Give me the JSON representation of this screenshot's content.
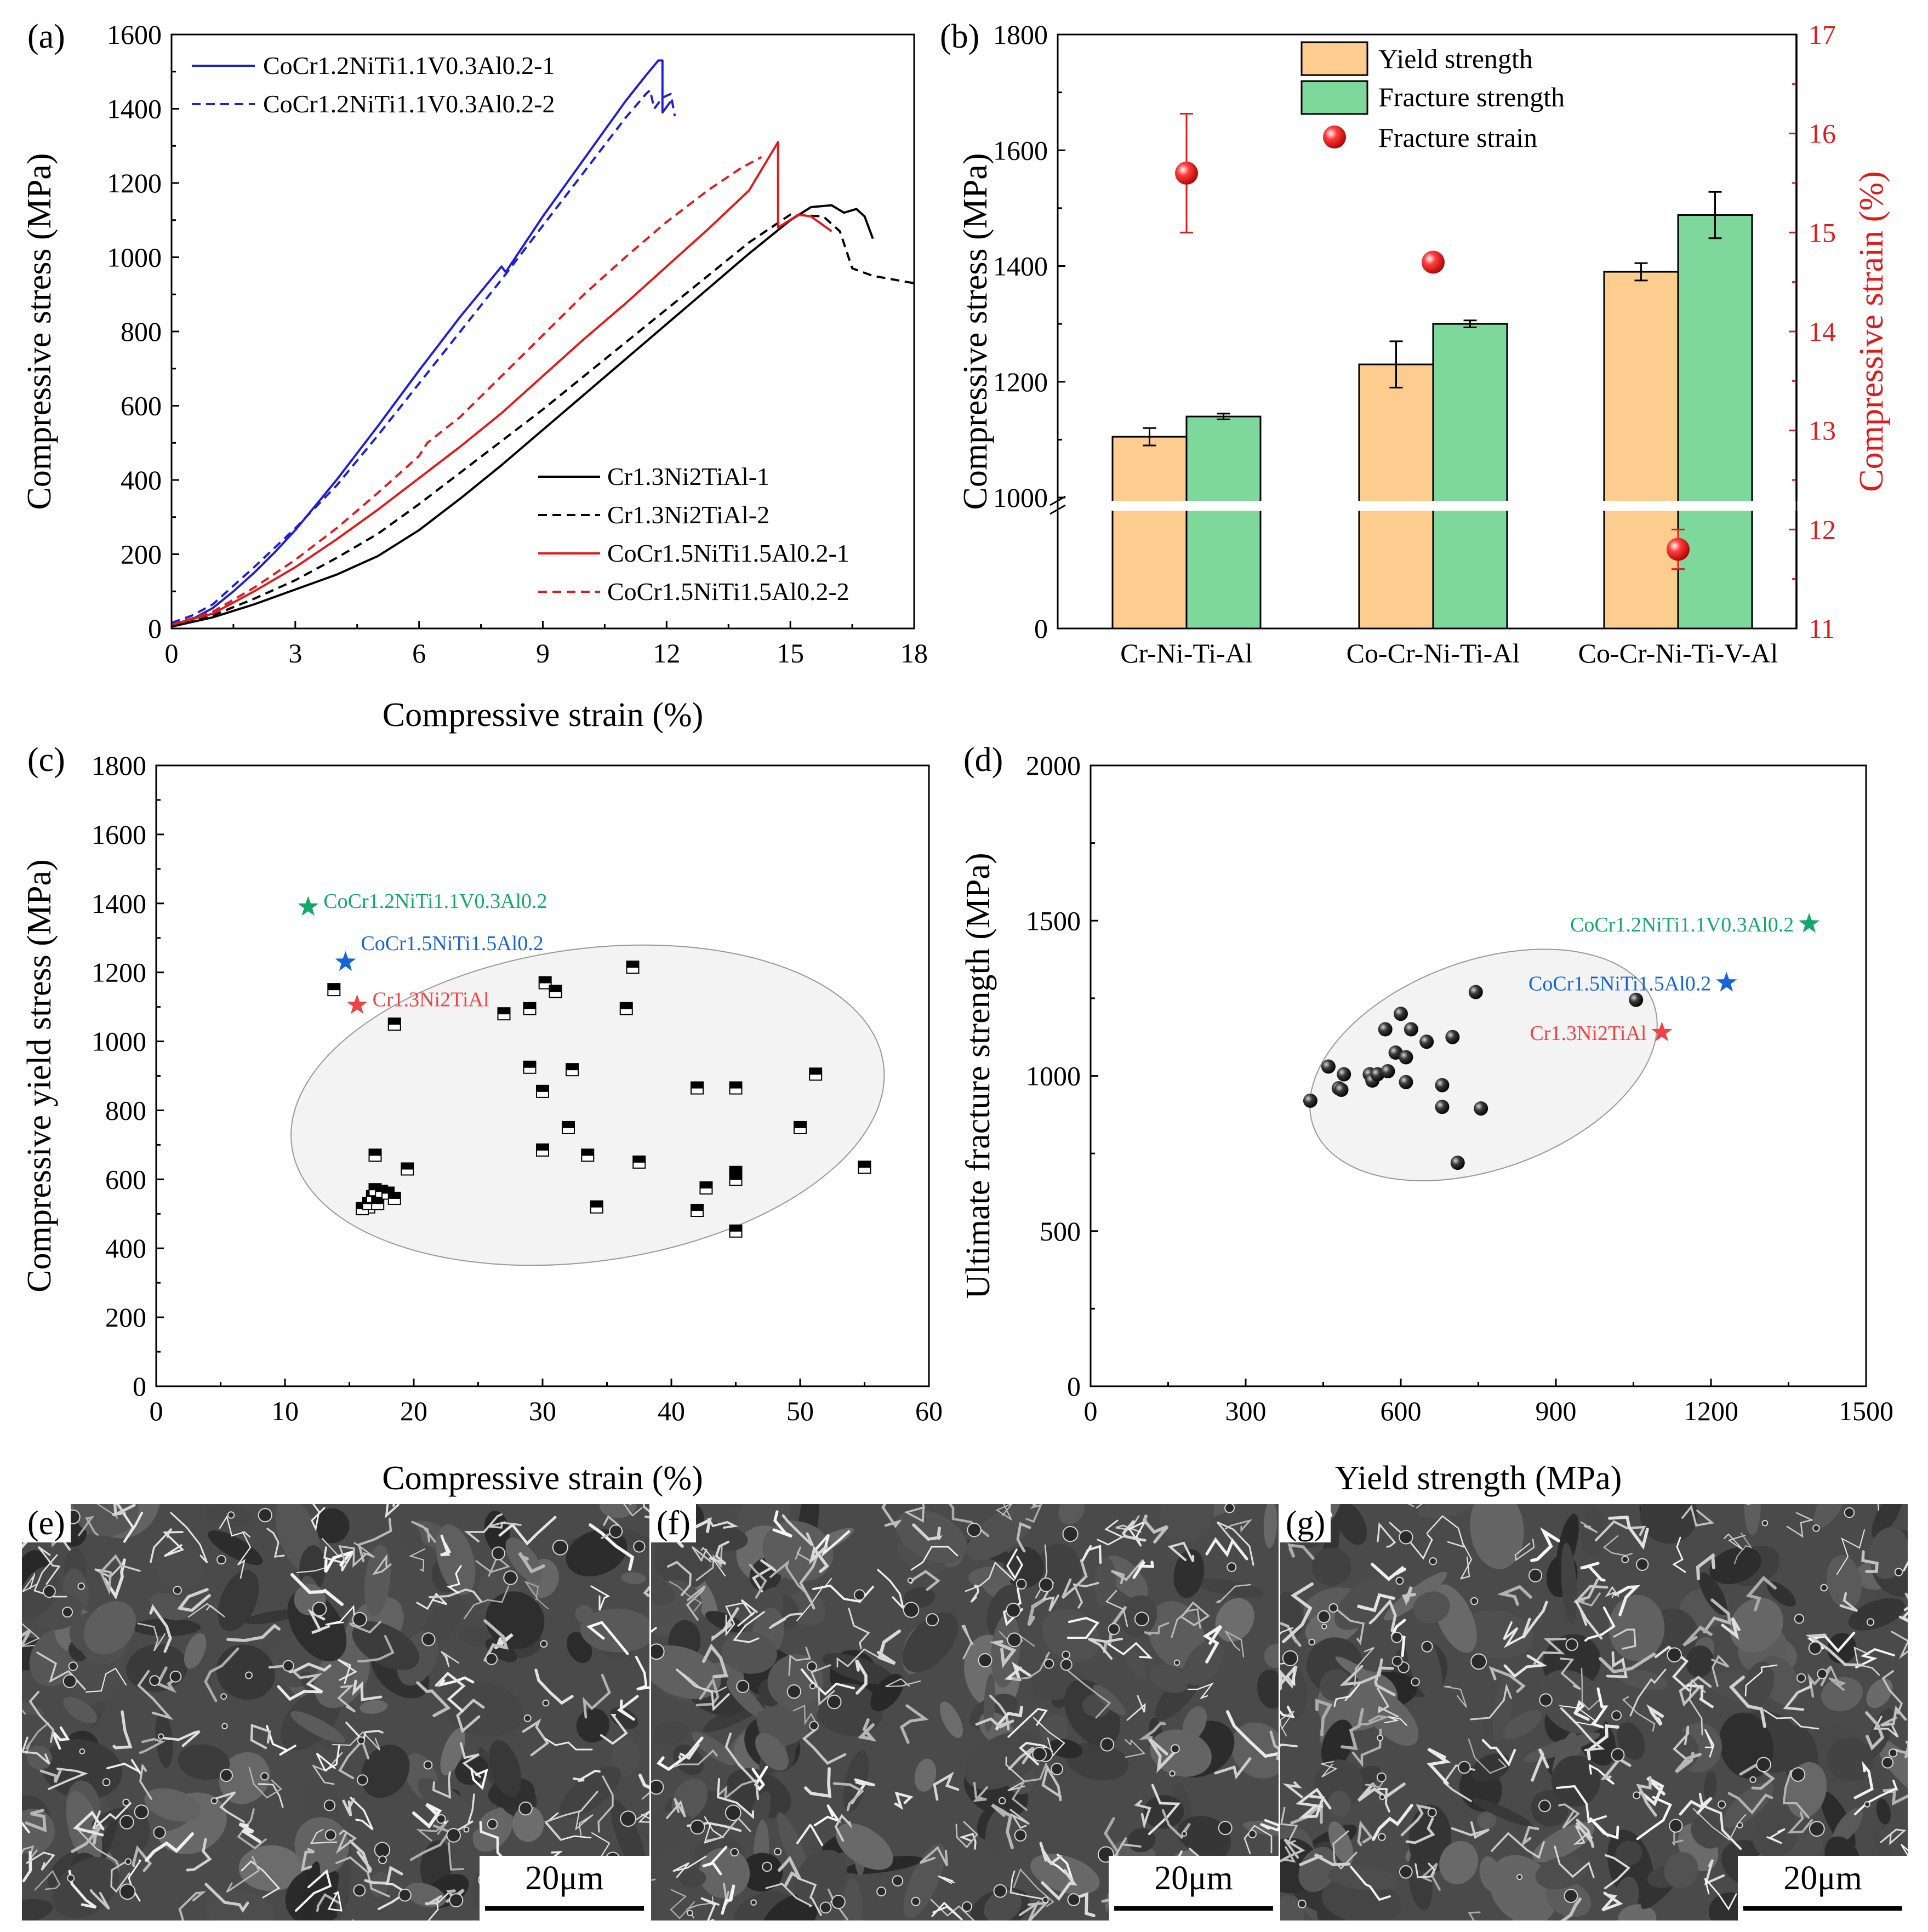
{
  "panels": {
    "a": "(a)",
    "b": "(b)",
    "c": "(c)",
    "d": "(d)",
    "e": "(e)",
    "f": "(f)",
    "g": "(g)"
  },
  "colors": {
    "blue": "#1f1fd6",
    "red": "#e01b1b",
    "black": "#000000",
    "yield_bar": "#fdcd8f",
    "fracture_bar": "#7fd89b",
    "right_axis": "#e01b1b",
    "green_star": "#14a86b",
    "blue_star": "#1565d8",
    "red_star": "#ef4444",
    "ellipse_fill": "#f3f3f3"
  },
  "chart_data": [
    {
      "id": "a",
      "type": "line",
      "title": "",
      "xlabel": "Compressive strain (%)",
      "ylabel": "Compressive stress (MPa)",
      "xlim": [
        0,
        18
      ],
      "ylim": [
        0,
        1600
      ],
      "xticks": [
        0,
        3,
        6,
        9,
        12,
        15,
        18
      ],
      "yticks": [
        0,
        200,
        400,
        600,
        800,
        1000,
        1200,
        1400,
        1600
      ],
      "series": [
        {
          "name": "CoCr1.2NiTi1.1V0.3Al0.2-1",
          "color": "blue",
          "dash": false,
          "x": [
            0,
            0.5,
            1,
            1.5,
            2,
            2.5,
            3,
            4,
            5,
            6,
            7,
            8,
            8.1,
            9,
            10,
            11,
            11.5,
            11.8,
            11.9,
            11.9,
            12.1
          ],
          "y": [
            10,
            25,
            55,
            100,
            150,
            205,
            265,
            400,
            545,
            695,
            840,
            975,
            960,
            1110,
            1265,
            1420,
            1490,
            1530,
            1530,
            1390,
            1420
          ]
        },
        {
          "name": "CoCr1.2NiTi1.1V0.3Al0.2-2",
          "color": "blue",
          "dash": true,
          "x": [
            0,
            0.5,
            1,
            1.5,
            2,
            3,
            4,
            5,
            6,
            7,
            8,
            9,
            10,
            11,
            11.5,
            11.6,
            11.7,
            11.9,
            12.1,
            12.2
          ],
          "y": [
            15,
            35,
            65,
            115,
            165,
            270,
            385,
            520,
            660,
            800,
            940,
            1085,
            1230,
            1375,
            1440,
            1450,
            1400,
            1430,
            1440,
            1380
          ]
        },
        {
          "name": "Cr1.3Ni2TiAl-1",
          "color": "black",
          "dash": false,
          "x": [
            0,
            1,
            2,
            3,
            4,
            4.5,
            5,
            6,
            7,
            8,
            9,
            10,
            11,
            12,
            13,
            14,
            15,
            15.5,
            16,
            16.3,
            16.6,
            16.8,
            17
          ],
          "y": [
            5,
            30,
            65,
            105,
            145,
            170,
            195,
            265,
            350,
            440,
            535,
            630,
            725,
            820,
            915,
            1010,
            1100,
            1135,
            1140,
            1120,
            1130,
            1110,
            1050
          ]
        },
        {
          "name": "Cr1.3Ni2TiAl-2",
          "color": "black",
          "dash": true,
          "x": [
            0,
            1,
            2,
            3,
            4,
            5,
            6,
            7,
            8,
            9,
            10,
            11,
            12,
            13,
            14,
            15,
            15.8,
            16.2,
            16.5,
            17,
            18
          ],
          "y": [
            5,
            35,
            80,
            130,
            190,
            255,
            335,
            420,
            505,
            590,
            680,
            770,
            860,
            950,
            1040,
            1115,
            1110,
            1070,
            970,
            950,
            930
          ]
        },
        {
          "name": "CoCr1.5NiTi1.5Al0.2-1",
          "color": "red",
          "dash": false,
          "x": [
            0,
            1,
            2,
            3,
            4,
            5,
            6,
            7,
            8,
            9,
            10,
            11,
            12,
            13,
            14,
            14.7,
            14.7,
            15.2,
            15.5,
            16
          ],
          "y": [
            10,
            40,
            100,
            165,
            240,
            320,
            405,
            490,
            580,
            680,
            780,
            875,
            975,
            1075,
            1180,
            1310,
            1080,
            1115,
            1110,
            1070
          ]
        },
        {
          "name": "CoCr1.5NiTi1.5Al0.2-2",
          "color": "red",
          "dash": true,
          "x": [
            0,
            1,
            2,
            3,
            4,
            5,
            6,
            6.2,
            7,
            8,
            9,
            10,
            11,
            12,
            13,
            13.8,
            14.3
          ],
          "y": [
            10,
            45,
            110,
            185,
            270,
            365,
            465,
            500,
            570,
            680,
            790,
            900,
            1000,
            1095,
            1180,
            1240,
            1270
          ]
        }
      ],
      "legend_top": [
        "CoCr1.2NiTi1.1V0.3Al0.2-1",
        "CoCr1.2NiTi1.1V0.3Al0.2-2"
      ],
      "legend_bottom": [
        "Cr1.3Ni2TiAl-1",
        "Cr1.3Ni2TiAl-2",
        "CoCr1.5NiTi1.5Al0.2-1",
        "CoCr1.5NiTi1.5Al0.2-2"
      ]
    },
    {
      "id": "b",
      "type": "bar",
      "title": "",
      "categories": [
        "Cr-Ni-Ti-Al",
        "Co-Cr-Ni-Ti-Al",
        "Co-Cr-Ni-Ti-V-Al"
      ],
      "series": [
        {
          "name": "Yield strength",
          "color": "yield_bar",
          "values": [
            1105,
            1230,
            1390
          ],
          "errors": [
            15,
            40,
            15
          ]
        },
        {
          "name": "Fracture strength",
          "color": "fracture_bar",
          "values": [
            1140,
            1300,
            1488
          ],
          "errors": [
            5,
            6,
            40
          ]
        },
        {
          "name": "Fracture strain",
          "color": "right_axis",
          "axis": "right",
          "values": [
            15.6,
            14.7,
            11.8
          ],
          "errors": [
            0.6,
            0,
            0.2
          ]
        }
      ],
      "ylabel": "Compressive stress (MPa)",
      "y2label": "Compressive strain (%)",
      "yticks": [
        0,
        1000,
        1200,
        1400,
        1600,
        1800
      ],
      "ybreak": true,
      "y2lim": [
        11,
        17
      ],
      "y2ticks": [
        11,
        12,
        13,
        14,
        15,
        16,
        17
      ]
    },
    {
      "id": "c",
      "type": "scatter",
      "title": "",
      "xlabel": "Compressive strain (%)",
      "ylabel": "Compressive yield stress (MPa)",
      "xlim": [
        0,
        60
      ],
      "ylim": [
        0,
        1800
      ],
      "xticks": [
        0,
        10,
        20,
        30,
        40,
        50,
        60
      ],
      "yticks": [
        0,
        200,
        400,
        600,
        800,
        1000,
        1200,
        1400,
        1600,
        1800
      ],
      "points": [
        [
          13.8,
          1150
        ],
        [
          18.5,
          1050
        ],
        [
          16.5,
          520
        ],
        [
          16,
          515
        ],
        [
          16.5,
          530
        ],
        [
          16.8,
          550
        ],
        [
          17,
          570
        ],
        [
          17.5,
          565
        ],
        [
          17.2,
          530
        ],
        [
          18,
          560
        ],
        [
          18.5,
          545
        ],
        [
          17,
          670
        ],
        [
          19.5,
          630
        ],
        [
          27,
          1080
        ],
        [
          29,
          1095
        ],
        [
          30.2,
          1170
        ],
        [
          31,
          1145
        ],
        [
          29,
          925
        ],
        [
          30,
          855
        ],
        [
          32.3,
          918
        ],
        [
          32,
          750
        ],
        [
          30,
          685
        ],
        [
          33.5,
          670
        ],
        [
          34.2,
          520
        ],
        [
          36.5,
          1095
        ],
        [
          37,
          1215
        ],
        [
          37.5,
          650
        ],
        [
          42,
          865
        ],
        [
          42,
          510
        ],
        [
          42.7,
          575
        ],
        [
          45,
          865
        ],
        [
          45,
          620
        ],
        [
          45,
          600
        ],
        [
          45,
          450
        ],
        [
          50,
          750
        ],
        [
          51.2,
          905
        ],
        [
          55,
          635
        ]
      ],
      "highlights": [
        {
          "label": "CoCr1.2NiTi1.1V0.3Al0.2",
          "x": 11.8,
          "y": 1390,
          "color": "green_star"
        },
        {
          "label": "CoCr1.5NiTi1.5Al0.2",
          "x": 14.7,
          "y": 1230,
          "color": "blue_star"
        },
        {
          "label": "Cr1.3Ni2TiAl",
          "x": 15.6,
          "y": 1105,
          "color": "red_star"
        }
      ]
    },
    {
      "id": "d",
      "type": "scatter",
      "title": "",
      "xlabel": "Yield  strength (MPa)",
      "ylabel": "Ultimate  fracture  strength (MPa)",
      "xlim": [
        0,
        1500
      ],
      "ylim": [
        0,
        2000
      ],
      "xticks": [
        0,
        300,
        600,
        900,
        1200,
        1500
      ],
      "yticks": [
        0,
        500,
        1000,
        1500,
        2000
      ],
      "points": [
        [
          425,
          920
        ],
        [
          460,
          1030
        ],
        [
          480,
          960
        ],
        [
          485,
          955
        ],
        [
          490,
          1005
        ],
        [
          540,
          1005
        ],
        [
          545,
          985
        ],
        [
          555,
          1005
        ],
        [
          570,
          1150
        ],
        [
          575,
          1015
        ],
        [
          590,
          1075
        ],
        [
          600,
          1200
        ],
        [
          610,
          1060
        ],
        [
          610,
          980
        ],
        [
          620,
          1150
        ],
        [
          650,
          1110
        ],
        [
          680,
          970
        ],
        [
          680,
          900
        ],
        [
          700,
          1125
        ],
        [
          710,
          720
        ],
        [
          745,
          1270
        ],
        [
          755,
          895
        ],
        [
          1055,
          1245
        ]
      ],
      "highlights": [
        {
          "label": "CoCr1.2NiTi1.1V0.3Al0.2",
          "x": 1390,
          "y": 1490,
          "color": "green_star"
        },
        {
          "label": "CoCr1.5NiTi1.5Al0.2",
          "x": 1230,
          "y": 1300,
          "color": "blue_star"
        },
        {
          "label": "Cr1.3Ni2TiAl",
          "x": 1105,
          "y": 1140,
          "color": "red_star"
        }
      ]
    }
  ],
  "micrographs": [
    {
      "panel": "(e)",
      "scale": "20μm"
    },
    {
      "panel": "(f)",
      "scale": "20μm"
    },
    {
      "panel": "(g)",
      "scale": "20μm"
    }
  ]
}
